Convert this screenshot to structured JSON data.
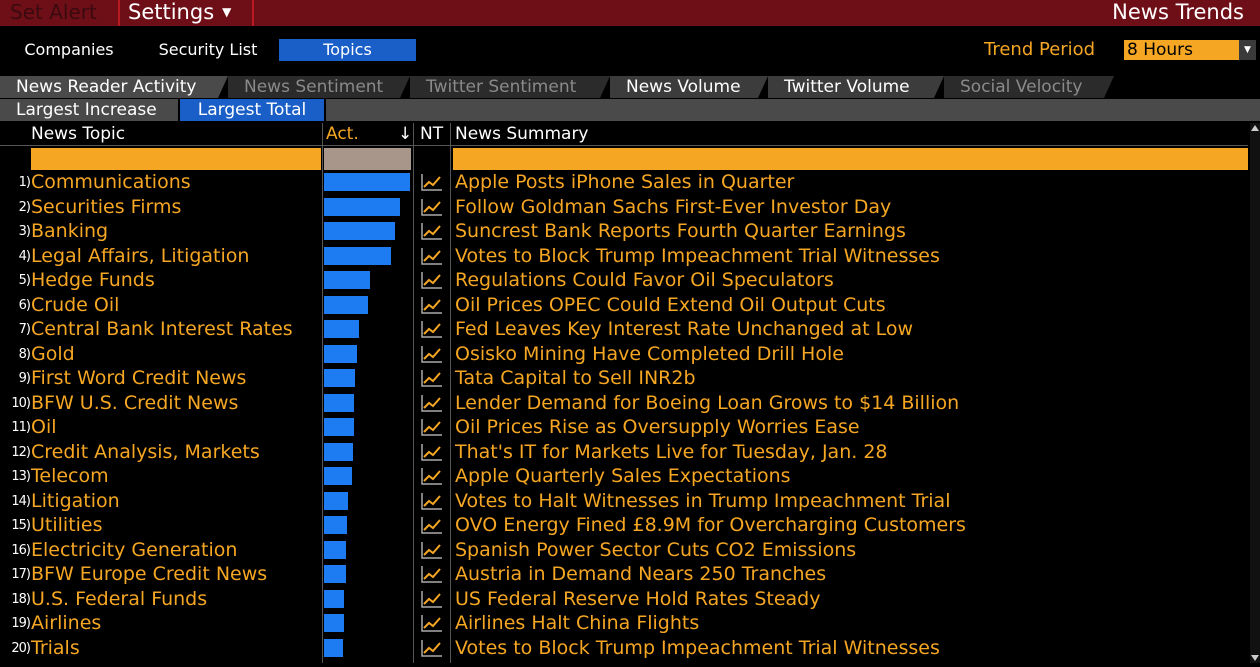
{
  "topbar": {
    "set_alert": "Set Alert",
    "settings": "Settings",
    "settings_caret": "▼",
    "title": "News Trends"
  },
  "primary_tabs": [
    {
      "label": "Companies",
      "active": false
    },
    {
      "label": "Security List",
      "active": false
    },
    {
      "label": "Topics",
      "active": true
    }
  ],
  "trend_period": {
    "label": "Trend Period",
    "value": "8 Hours",
    "dropdown_icon": "▼"
  },
  "secondary_tabs": [
    {
      "label": "News Reader Activity",
      "active": true
    },
    {
      "label": "News Sentiment",
      "active": false
    },
    {
      "label": "Twitter Sentiment",
      "active": false
    },
    {
      "label": "News Volume",
      "active": false
    },
    {
      "label": "Twitter Volume",
      "active": false
    },
    {
      "label": "Social Velocity",
      "active": false
    }
  ],
  "sub_tabs": [
    {
      "label": "Largest Increase",
      "active": false
    },
    {
      "label": "Largest Total",
      "active": true
    }
  ],
  "table": {
    "headers": {
      "topic": "News Topic",
      "activity": "Act.",
      "sort_arrow": "↓",
      "nt": "NT",
      "summary": "News Summary"
    },
    "colors": {
      "accent": "#f5a623",
      "bar": "#1e7cf2",
      "active_tab": "#1a5fc7",
      "title_bar": "#6e0f18"
    },
    "rows": [
      {
        "num": "1)",
        "topic": "Communications",
        "activity": 1.0,
        "summary": "Apple Posts iPhone Sales in Quarter"
      },
      {
        "num": "2)",
        "topic": "Securities Firms",
        "activity": 0.88,
        "summary": "Follow Goldman Sachs First-Ever Investor Day"
      },
      {
        "num": "3)",
        "topic": "Banking",
        "activity": 0.83,
        "summary": "Suncrest Bank Reports Fourth Quarter Earnings"
      },
      {
        "num": "4)",
        "topic": "Legal Affairs, Litigation",
        "activity": 0.78,
        "summary": "Votes to Block Trump Impeachment Trial Witnesses"
      },
      {
        "num": "5)",
        "topic": "Hedge Funds",
        "activity": 0.53,
        "summary": "Regulations Could Favor Oil Speculators"
      },
      {
        "num": "6)",
        "topic": "Crude Oil",
        "activity": 0.51,
        "summary": "Oil Prices OPEC Could Extend Oil Output Cuts"
      },
      {
        "num": "7)",
        "topic": "Central Bank Interest Rates",
        "activity": 0.41,
        "summary": "Fed Leaves Key Interest Rate Unchanged at Low"
      },
      {
        "num": "8)",
        "topic": "Gold",
        "activity": 0.38,
        "summary": "Osisko Mining Have Completed Drill Hole"
      },
      {
        "num": "9)",
        "topic": "First Word Credit News",
        "activity": 0.36,
        "summary": "Tata Capital to Sell INR2b"
      },
      {
        "num": "10)",
        "topic": "BFW U.S. Credit News",
        "activity": 0.35,
        "summary": "Lender Demand for Boeing Loan Grows to $14 Billion"
      },
      {
        "num": "11)",
        "topic": "Oil",
        "activity": 0.35,
        "summary": "Oil Prices Rise as Oversupply Worries Ease"
      },
      {
        "num": "12)",
        "topic": "Credit Analysis, Markets",
        "activity": 0.34,
        "summary": "That's IT for Markets Live for Tuesday, Jan. 28"
      },
      {
        "num": "13)",
        "topic": "Telecom",
        "activity": 0.33,
        "summary": "Apple Quarterly Sales Expectations"
      },
      {
        "num": "14)",
        "topic": "Litigation",
        "activity": 0.28,
        "summary": "Votes to Halt Witnesses in Trump Impeachment Trial"
      },
      {
        "num": "15)",
        "topic": "Utilities",
        "activity": 0.27,
        "summary": "OVO Energy Fined £8.9M for Overcharging Customers"
      },
      {
        "num": "16)",
        "topic": "Electricity Generation",
        "activity": 0.26,
        "summary": "Spanish Power Sector Cuts CO2 Emissions"
      },
      {
        "num": "17)",
        "topic": "BFW Europe Credit News",
        "activity": 0.25,
        "summary": "Austria in Demand Nears 250 Tranches"
      },
      {
        "num": "18)",
        "topic": "U.S. Federal Funds",
        "activity": 0.23,
        "summary": "US Federal Reserve Hold Rates Steady"
      },
      {
        "num": "19)",
        "topic": "Airlines",
        "activity": 0.23,
        "summary": "Airlines Halt China Flights"
      },
      {
        "num": "20)",
        "topic": "Trials",
        "activity": 0.22,
        "summary": "Votes to Block Trump Impeachment Trial Witnesses"
      }
    ]
  }
}
